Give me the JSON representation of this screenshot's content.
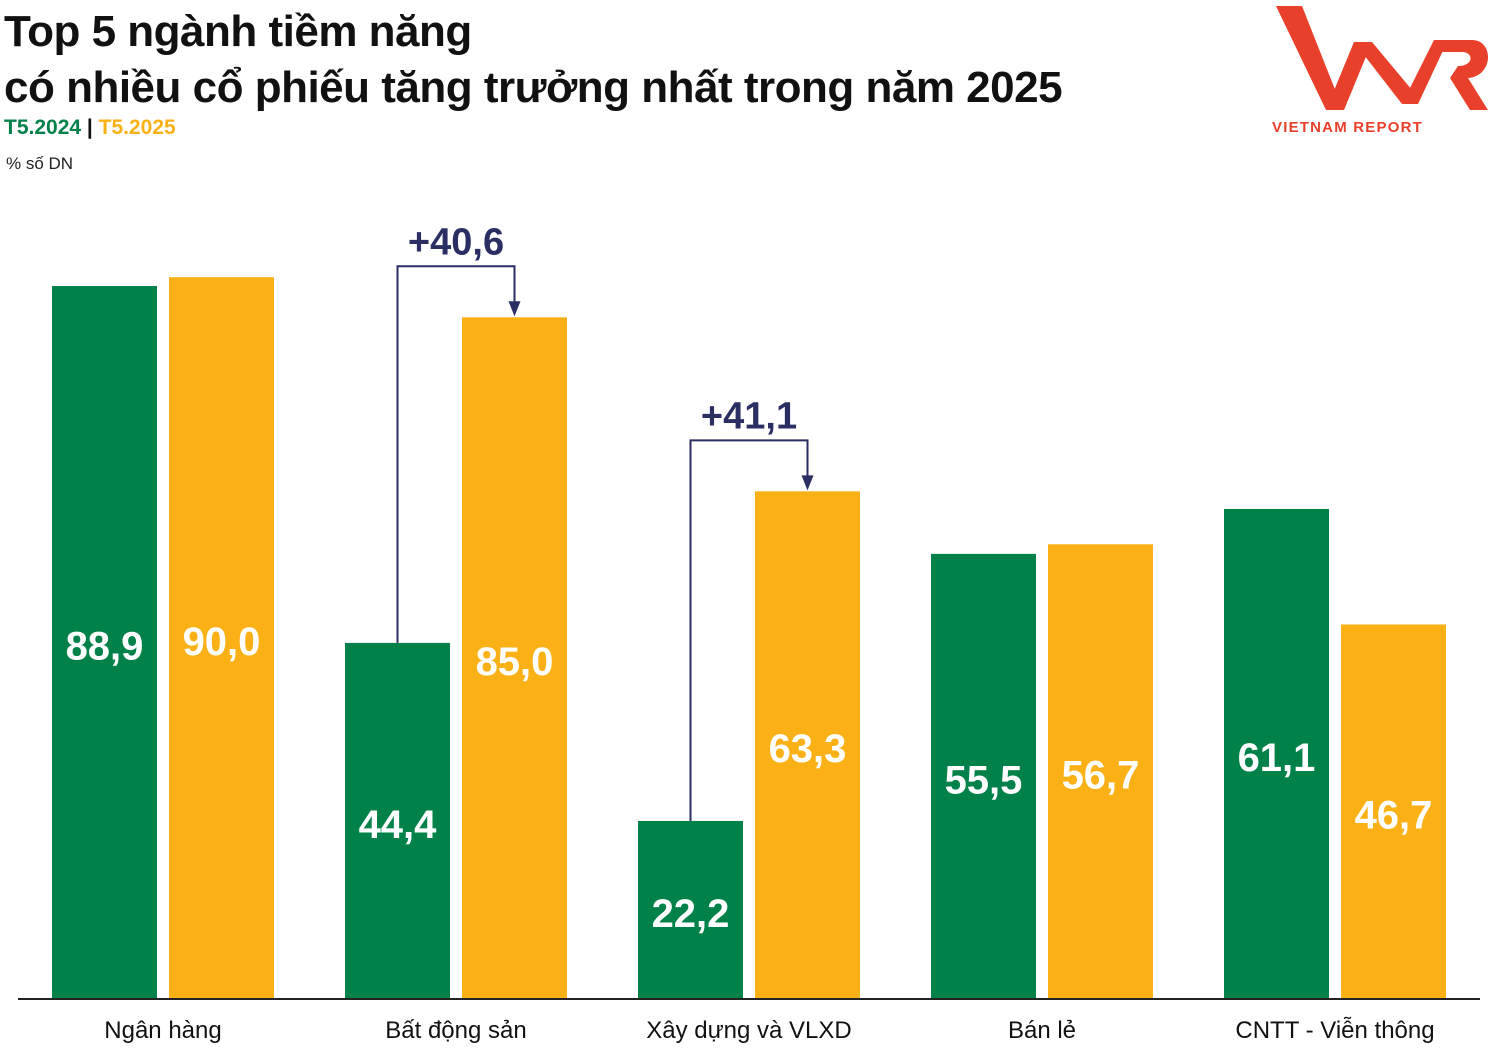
{
  "title_line1": "Top 5 ngành tiềm năng",
  "title_line2": "có nhiều cổ phiếu tăng trưởng nhất trong năm 2025",
  "legend": {
    "label_2024": "T5.2024",
    "separator": "|",
    "label_2025": "T5.2025"
  },
  "unit_label": "% số DN",
  "logo": {
    "brand": "VNR",
    "tagline": "VIETNAM REPORT",
    "color": "#e8402a"
  },
  "colors": {
    "green": "#00814a",
    "orange": "#fbb116",
    "annotation": "#2b2e63",
    "axis": "#222222",
    "title": "#111111"
  },
  "chart_data": {
    "type": "bar",
    "title": "Top 5 ngành tiềm năng có nhiều cổ phiếu tăng trưởng nhất trong năm 2025",
    "ylabel": "% số DN",
    "xlabel": "",
    "ylim": [
      0,
      100
    ],
    "grid": false,
    "legend_position": "top-left",
    "categories": [
      "Ngân hàng",
      "Bất động sản",
      "Xây dựng và VLXD",
      "Bán lẻ",
      "CNTT - Viễn thông"
    ],
    "series": [
      {
        "name": "T5.2024",
        "values": [
          88.9,
          44.4,
          22.2,
          55.5,
          61.1
        ],
        "labels": [
          "88,9",
          "44,4",
          "22,2",
          "55,5",
          "61,1"
        ]
      },
      {
        "name": "T5.2025",
        "values": [
          90.0,
          85.0,
          63.3,
          56.7,
          46.7
        ],
        "labels": [
          "90,0",
          "85,0",
          "63,3",
          "56,7",
          "46,7"
        ]
      }
    ],
    "annotations": [
      {
        "category_index": 1,
        "text": "+40,6"
      },
      {
        "category_index": 2,
        "text": "+41,1"
      }
    ]
  }
}
